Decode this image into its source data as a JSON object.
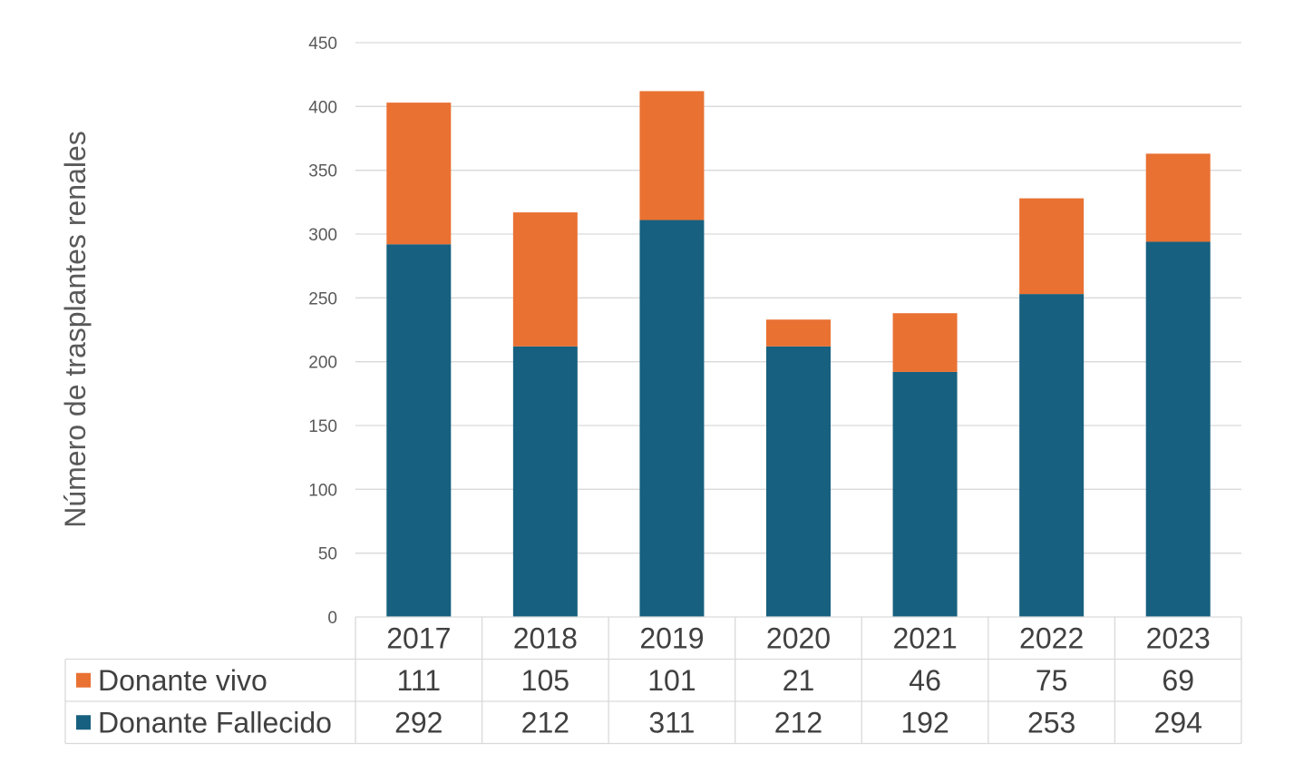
{
  "chart_data": {
    "type": "bar",
    "stacked": true,
    "categories": [
      "2017",
      "2018",
      "2019",
      "2020",
      "2021",
      "2022",
      "2023"
    ],
    "series": [
      {
        "name": "Donante Fallecido",
        "color": "#17607F",
        "values": [
          292,
          212,
          311,
          212,
          192,
          253,
          294
        ]
      },
      {
        "name": "Donante vivo",
        "color": "#E97132",
        "values": [
          111,
          105,
          101,
          21,
          46,
          75,
          69
        ]
      }
    ],
    "table_order": [
      1,
      0
    ],
    "ylabel": "Número de trasplantes renales",
    "ylim": [
      0,
      450
    ],
    "yticks": [
      "0",
      "50",
      "100",
      "150",
      "200",
      "250",
      "300",
      "350",
      "400",
      "450"
    ],
    "grid": true,
    "legend": "data-table"
  }
}
